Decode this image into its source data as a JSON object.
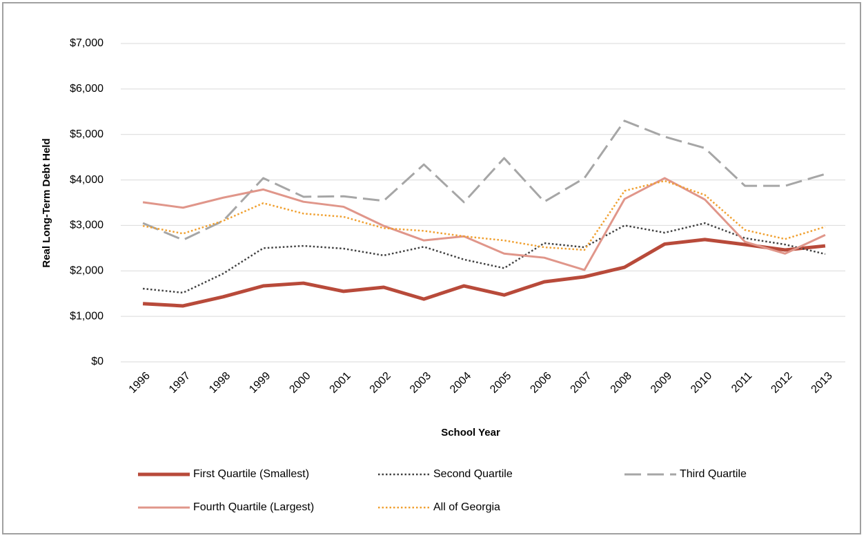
{
  "chart_data": {
    "type": "line",
    "y_label": "Real Long-Term Debt Held",
    "x_label": "School Year",
    "categories": [
      "1996",
      "1997",
      "1998",
      "1999",
      "2000",
      "2001",
      "2002",
      "2003",
      "2004",
      "2005",
      "2006",
      "2007",
      "2008",
      "2009",
      "2010",
      "2011",
      "2012",
      "2013"
    ],
    "series": [
      {
        "name": "First Quartile (Smallest)",
        "color": "#b84a3a",
        "style": "solid",
        "width": 5,
        "values": [
          1280,
          1230,
          1430,
          1670,
          1730,
          1550,
          1640,
          1380,
          1670,
          1470,
          1760,
          1870,
          2080,
          2590,
          2690,
          2580,
          2460,
          2550
        ]
      },
      {
        "name": "Second Quartile",
        "color": "#404040",
        "style": "dotted",
        "width": 2.5,
        "values": [
          1610,
          1520,
          1940,
          2500,
          2550,
          2490,
          2340,
          2530,
          2250,
          2060,
          2610,
          2520,
          3000,
          2840,
          3050,
          2720,
          2580,
          2370
        ]
      },
      {
        "name": "Third Quartile",
        "color": "#a6a6a6",
        "style": "dashed",
        "width": 3,
        "values": [
          3050,
          2680,
          3100,
          4040,
          3630,
          3640,
          3540,
          4340,
          3510,
          4480,
          3520,
          4040,
          5300,
          4950,
          4700,
          3870,
          3870,
          4130
        ]
      },
      {
        "name": "Fourth Quartile (Largest)",
        "color": "#e0968a",
        "style": "solid",
        "width": 3,
        "values": [
          3510,
          3390,
          3610,
          3790,
          3520,
          3410,
          2990,
          2670,
          2760,
          2380,
          2290,
          2020,
          3580,
          4040,
          3570,
          2640,
          2380,
          2790
        ]
      },
      {
        "name": "All of Georgia",
        "color": "#f0a030",
        "style": "dotted",
        "width": 2.5,
        "values": [
          2990,
          2820,
          3100,
          3490,
          3260,
          3190,
          2940,
          2880,
          2760,
          2670,
          2520,
          2460,
          3760,
          3980,
          3670,
          2900,
          2700,
          2970
        ]
      }
    ],
    "ylim": [
      0,
      7000
    ],
    "yticks": [
      {
        "value": 0,
        "label": "$0"
      },
      {
        "value": 1000,
        "label": "$1,000"
      },
      {
        "value": 2000,
        "label": "$2,000"
      },
      {
        "value": 3000,
        "label": "$3,000"
      },
      {
        "value": 4000,
        "label": "$4,000"
      },
      {
        "value": 5000,
        "label": "$5,000"
      },
      {
        "value": 6000,
        "label": "$6,000"
      },
      {
        "value": 7000,
        "label": "$7,000"
      }
    ],
    "grid": true,
    "legend": "bottom"
  }
}
